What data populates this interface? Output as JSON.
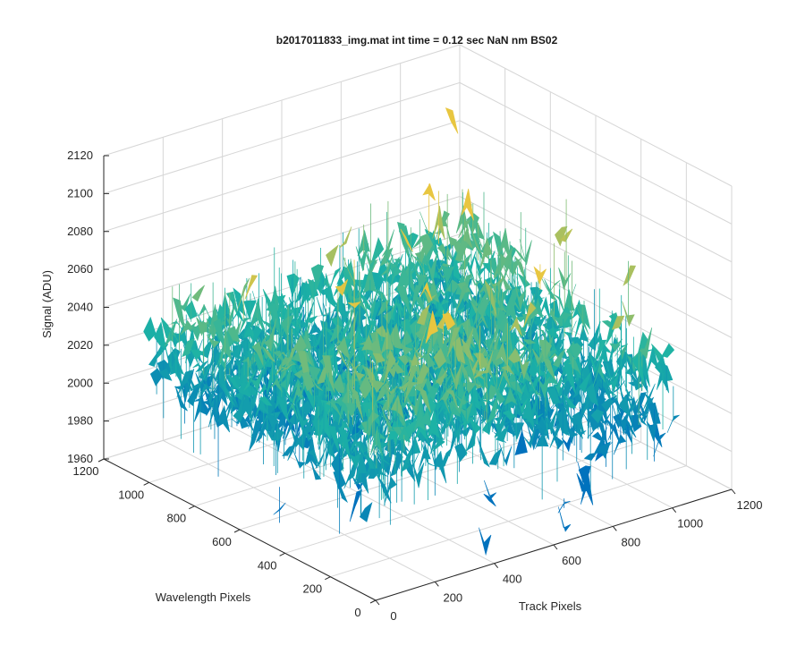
{
  "chart_data": {
    "type": "surface",
    "title": "b2017011833_img.mat int time = 0.12 sec  NaN nm BS02",
    "xlabel": "Track Pixels",
    "ylabel": "Wavelength Pixels",
    "zlabel": "Signal (ADU)",
    "xlim": [
      0,
      1200
    ],
    "ylim": [
      0,
      1200
    ],
    "zlim": [
      1960,
      2120
    ],
    "x_ticks": [
      "0",
      "200",
      "400",
      "600",
      "800",
      "1000",
      "1200"
    ],
    "y_ticks": [
      "0",
      "200",
      "400",
      "600",
      "800",
      "1000",
      "1200"
    ],
    "z_ticks": [
      "1960",
      "1980",
      "2000",
      "2020",
      "2040",
      "2060",
      "2080",
      "2100",
      "2120"
    ],
    "x_tick_values": [
      0,
      200,
      400,
      600,
      800,
      1000,
      1200
    ],
    "y_tick_values": [
      0,
      200,
      400,
      600,
      800,
      1000,
      1200
    ],
    "z_tick_values": [
      1960,
      1980,
      2000,
      2020,
      2040,
      2060,
      2080,
      2100,
      2120
    ],
    "data_extent": {
      "x": [
        0,
        1024
      ],
      "y": [
        0,
        1024
      ]
    },
    "mean_signal": 2028,
    "noise_range": [
      1965,
      2105
    ],
    "grid": true,
    "colormap": "parula",
    "colors": {
      "low": "#0072bd",
      "mid": "#1db3a5",
      "high": "#e8c640"
    }
  }
}
